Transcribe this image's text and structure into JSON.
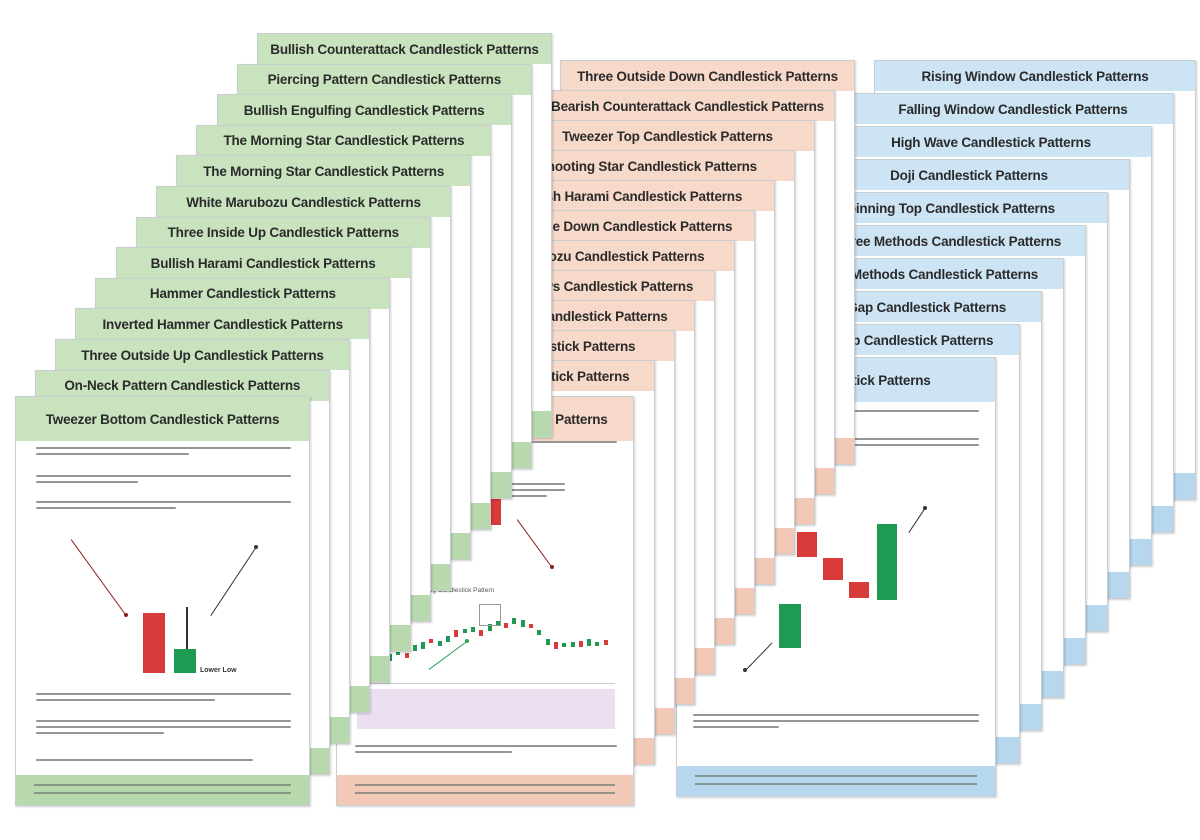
{
  "colors": {
    "green_header": "#c9e3bf",
    "green_footer": "#b8d9ad",
    "peach_header": "#f7d9c9",
    "peach_footer": "#f2c9b6",
    "blue_header": "#cde4f4",
    "blue_footer": "#b7d7ef",
    "bull": "#1f9a53",
    "bear": "#d93a3a",
    "arrow_green": "#24a25a"
  },
  "stacks": {
    "green": [
      "Bullish Counterattack Candlestick Patterns",
      "Piercing Pattern Candlestick Patterns",
      "Bullish Engulfing Candlestick Patterns",
      "The Morning Star Candlestick Patterns",
      "The Morning Star Candlestick Patterns",
      "White Marubozu Candlestick Patterns",
      "Three Inside Up Candlestick Patterns",
      "Bullish Harami Candlestick Patterns",
      "Hammer Candlestick Patterns",
      "Inverted Hammer Candlestick Patterns",
      "Three Outside Up Candlestick Patterns",
      "On-Neck Pattern Candlestick Patterns",
      "Tweezer Bottom Candlestick Patterns"
    ],
    "peach": [
      "Three Outside Down Candlestick Patterns",
      "Bearish Counterattack Candlestick Patterns",
      "Tweezer Top Candlestick Patterns",
      "Shooting Star Candlestick Patterns",
      "Bearish Harami Candlestick Patterns",
      "Three Inside Down Candlestick Patterns",
      "Black Marubozu Candlestick Patterns",
      "Three Black Crows Candlestick Patterns",
      "The Evening Star Candlestick Patterns",
      "Hanging Man Candlestick Patterns",
      "Dark Cloud Cover Candlestick Patterns",
      "Bearish Engulfing Candlestick Patterns"
    ],
    "blue": [
      "Rising Window Candlestick Patterns",
      "Falling Window Candlestick Patterns",
      "High Wave Candlestick Patterns",
      "Doji Candlestick Patterns",
      "Spinning Top Candlestick Patterns",
      "Falling Three Methods Candlestick Patterns",
      "Rising Three Methods Candlestick Patterns",
      "Upside Tasuki Gap Candlestick Patterns",
      "Downside Tasuki Gap Candlestick Patterns",
      "Mat-Hold Candlestick Patterns"
    ]
  },
  "front_cards": {
    "green": {
      "small_label": "Lower Low"
    },
    "peach": {
      "chart_caption": "Bearish Engulfing Candlestick Pattern"
    },
    "blue": {}
  }
}
